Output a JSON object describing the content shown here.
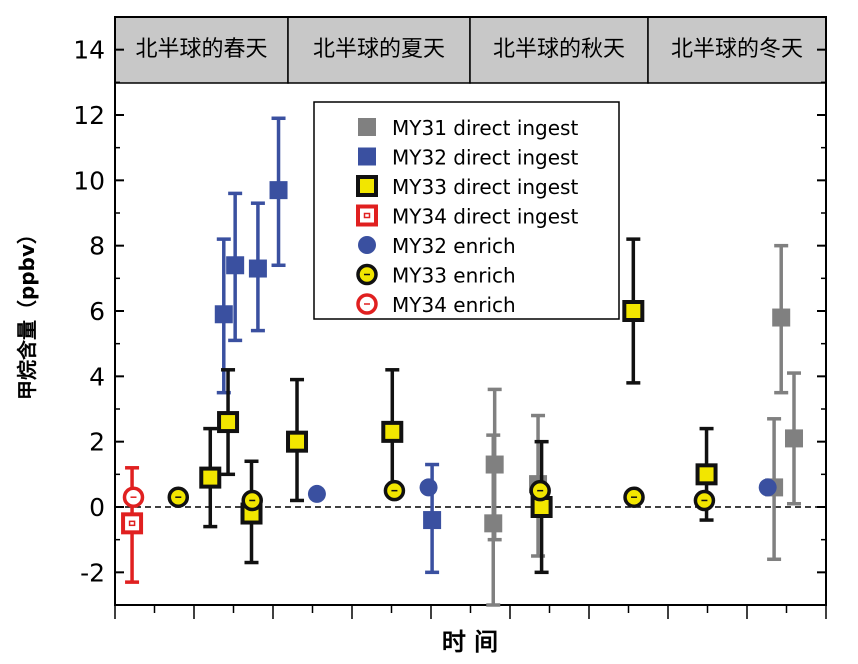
{
  "chart_data": {
    "type": "scatter",
    "title": "",
    "xlabel": "时 间",
    "ylabel": "甲烷含量（ppbv）",
    "ylim": [
      -3,
      15
    ],
    "yticks": [
      -2,
      0,
      2,
      4,
      6,
      8,
      10,
      12,
      14
    ],
    "x_tick_labels": "none",
    "grid": false,
    "zero_line": {
      "y": 0,
      "style": "dashed"
    },
    "legend_position": "upper-center",
    "season_bands": [
      "北半球的春天",
      "北半球的夏天",
      "北半球的秋天",
      "北半球的冬天"
    ],
    "series": [
      {
        "name": "MY31 direct ingest",
        "marker": "square",
        "color": "#808080",
        "fill": "#808080",
        "points": [
          {
            "x": 0.532,
            "y": -0.5,
            "lo": -3.0,
            "hi": 2.2
          },
          {
            "x": 0.534,
            "y": 1.3,
            "lo": -1.0,
            "hi": 3.6
          },
          {
            "x": 0.595,
            "y": 0.7,
            "lo": -1.5,
            "hi": 2.8
          },
          {
            "x": 0.927,
            "y": 0.6,
            "lo": -1.6,
            "hi": 2.7
          },
          {
            "x": 0.937,
            "y": 5.8,
            "lo": 3.5,
            "hi": 8.0
          },
          {
            "x": 0.955,
            "y": 2.1,
            "lo": 0.1,
            "hi": 4.1
          }
        ]
      },
      {
        "name": "MY32 direct ingest",
        "marker": "square",
        "color": "#3a50a0",
        "fill": "#3a50a0",
        "points": [
          {
            "x": 0.153,
            "y": 5.9,
            "lo": 3.5,
            "hi": 8.2
          },
          {
            "x": 0.169,
            "y": 7.4,
            "lo": 5.1,
            "hi": 9.6
          },
          {
            "x": 0.201,
            "y": 7.3,
            "lo": 5.4,
            "hi": 9.3
          },
          {
            "x": 0.23,
            "y": 9.7,
            "lo": 7.4,
            "hi": 11.9
          },
          {
            "x": 0.446,
            "y": -0.4,
            "lo": -2.0,
            "hi": 1.3
          }
        ]
      },
      {
        "name": "MY33 direct ingest",
        "marker": "square",
        "color": "#111111",
        "fill": "#f2e600",
        "points": [
          {
            "x": 0.134,
            "y": 0.9,
            "lo": -0.6,
            "hi": 2.4
          },
          {
            "x": 0.159,
            "y": 2.6,
            "lo": 1.0,
            "hi": 4.2
          },
          {
            "x": 0.192,
            "y": -0.2,
            "lo": -1.7,
            "hi": 1.4
          },
          {
            "x": 0.256,
            "y": 2.0,
            "lo": 0.2,
            "hi": 3.9
          },
          {
            "x": 0.39,
            "y": 2.3,
            "lo": 0.5,
            "hi": 4.2
          },
          {
            "x": 0.6,
            "y": 0.0,
            "lo": -2.0,
            "hi": 2.0
          },
          {
            "x": 0.729,
            "y": 6.0,
            "lo": 3.8,
            "hi": 8.2
          },
          {
            "x": 0.832,
            "y": 1.0,
            "lo": -0.4,
            "hi": 2.4
          }
        ]
      },
      {
        "name": "MY34 direct ingest",
        "marker": "square-open",
        "color": "#e02020",
        "fill": "#ffffff",
        "points": [
          {
            "x": 0.024,
            "y": -0.5,
            "lo": -2.3,
            "hi": 1.2
          }
        ]
      },
      {
        "name": "MY32 enrich",
        "marker": "circle",
        "color": "#3a50a0",
        "fill": "#3a50a0",
        "points": [
          {
            "x": 0.284,
            "y": 0.4
          },
          {
            "x": 0.441,
            "y": 0.6
          },
          {
            "x": 0.918,
            "y": 0.6
          }
        ]
      },
      {
        "name": "MY33 enrich",
        "marker": "circle",
        "color": "#111111",
        "fill": "#f2e600",
        "points": [
          {
            "x": 0.089,
            "y": 0.3
          },
          {
            "x": 0.193,
            "y": 0.2
          },
          {
            "x": 0.393,
            "y": 0.5
          },
          {
            "x": 0.598,
            "y": 0.5
          },
          {
            "x": 0.73,
            "y": 0.3
          },
          {
            "x": 0.829,
            "y": 0.2
          }
        ]
      },
      {
        "name": "MY34 enrich",
        "marker": "circle-open",
        "color": "#e02020",
        "fill": "#ffffff",
        "points": [
          {
            "x": 0.026,
            "y": 0.3
          }
        ]
      }
    ]
  }
}
